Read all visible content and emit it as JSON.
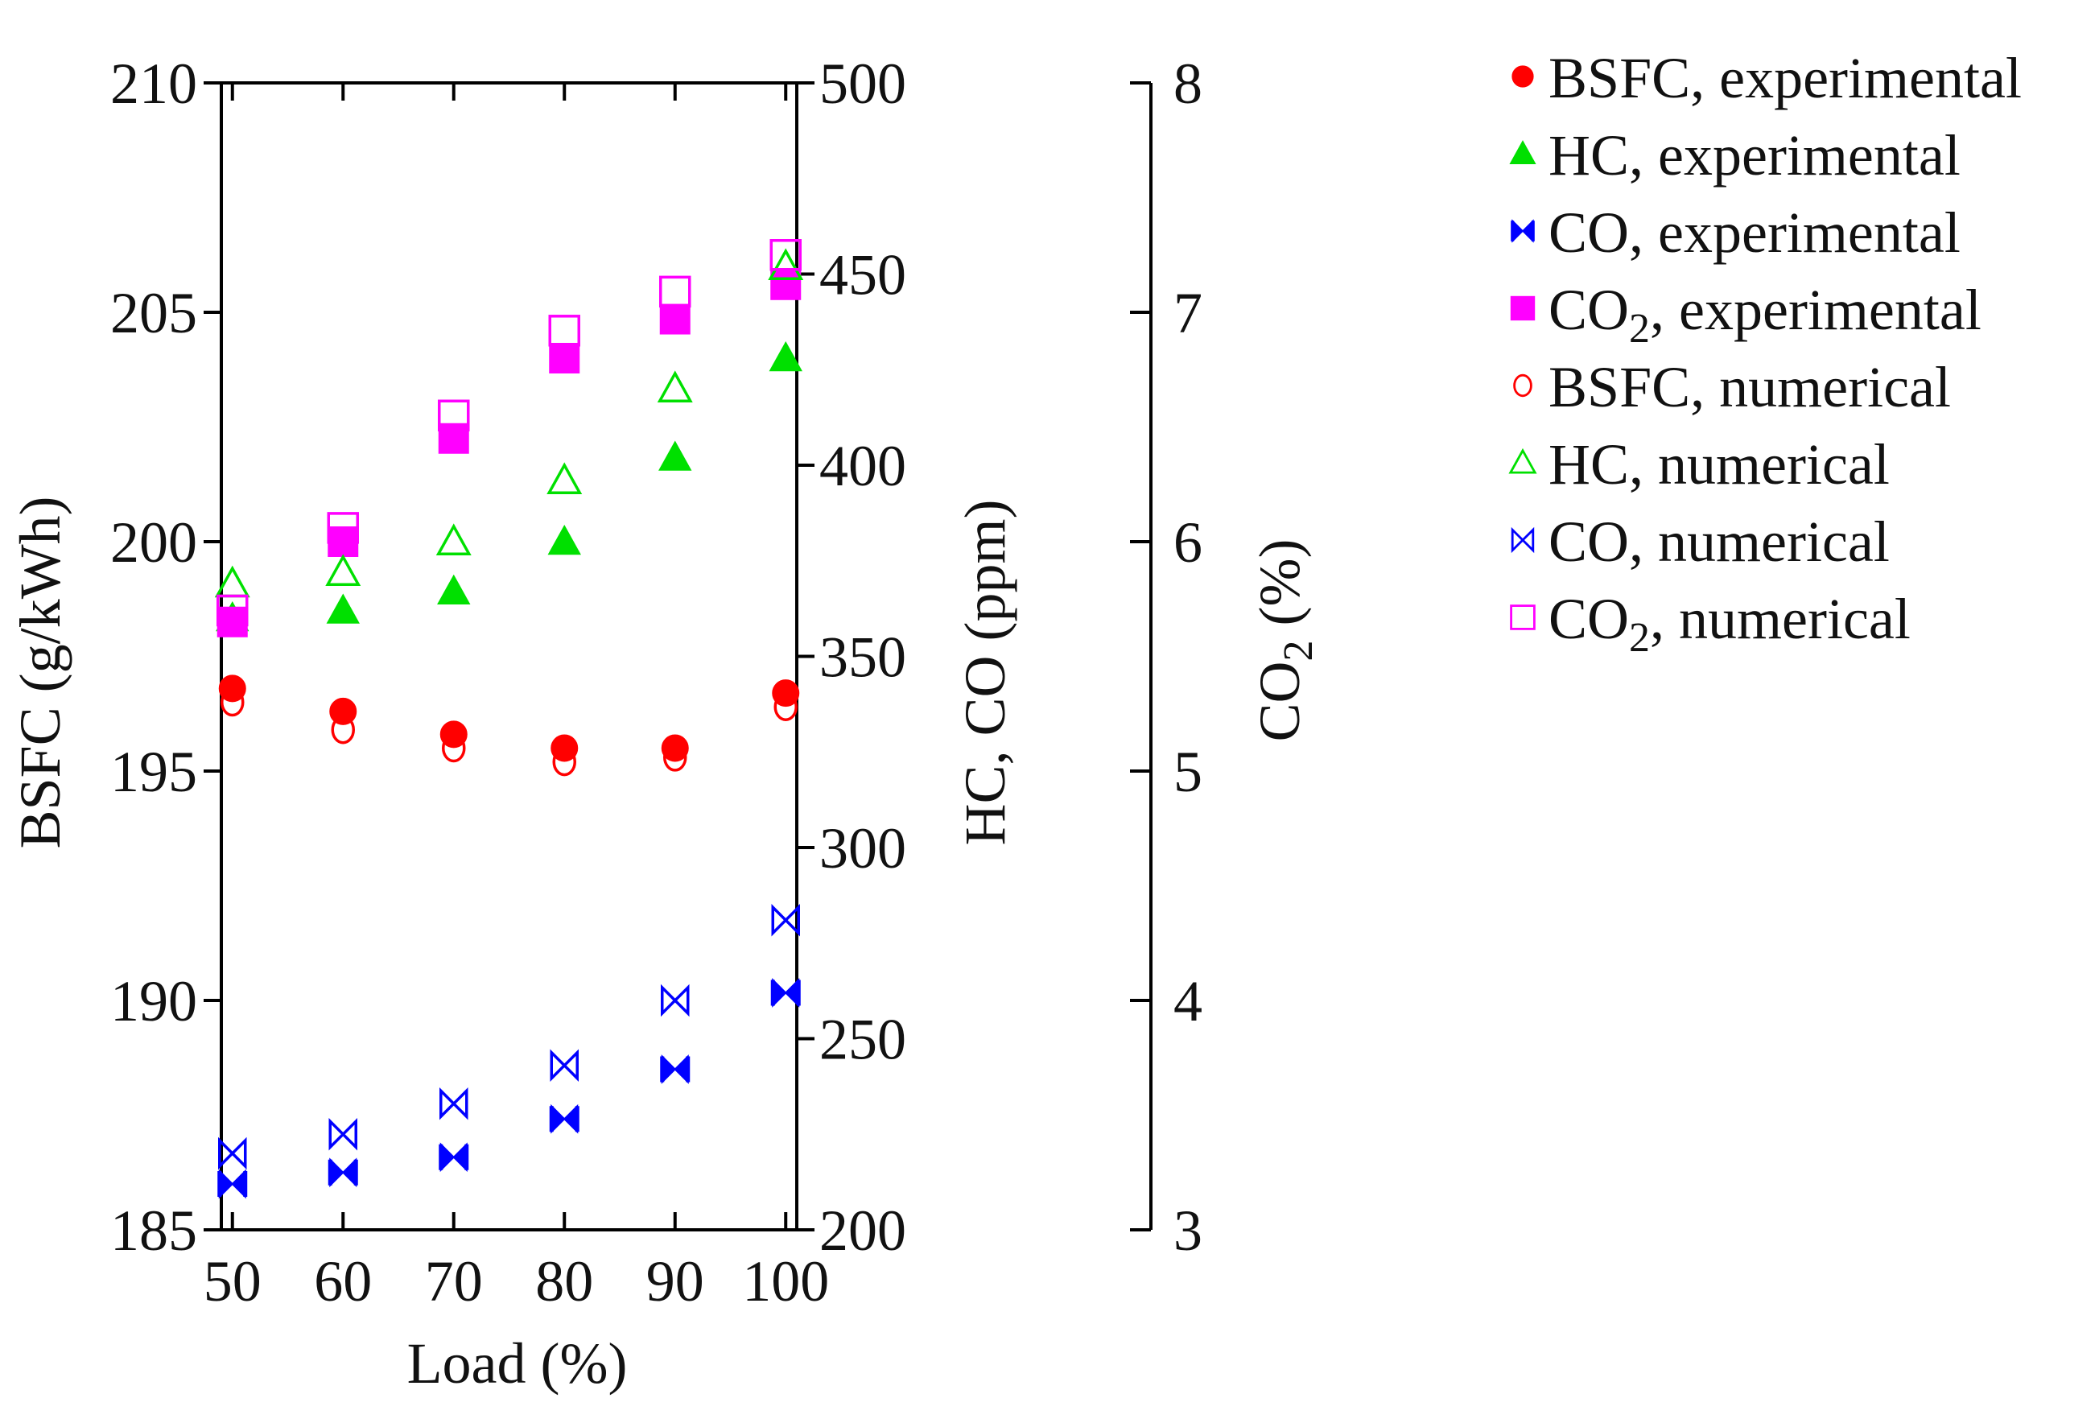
{
  "chart_data": {
    "type": "scatter",
    "x": [
      50,
      60,
      70,
      80,
      90,
      100
    ],
    "xlabel": "Load (%)",
    "xlim": [
      49,
      101
    ],
    "xticks": [
      50,
      60,
      70,
      80,
      90,
      100
    ],
    "axes": {
      "bsfc": {
        "label": "BSFC (g/kWh)",
        "lim": [
          185,
          210
        ],
        "ticks": [
          185,
          190,
          195,
          200,
          205,
          210
        ]
      },
      "hc_co": {
        "label": "HC, CO (ppm)",
        "lim": [
          200,
          500
        ],
        "ticks": [
          200,
          250,
          300,
          350,
          400,
          450,
          500
        ]
      },
      "co2": {
        "label_main": "CO",
        "label_sub": "2",
        "label_tail": " (%)",
        "lim": [
          3,
          8
        ],
        "ticks": [
          3,
          4,
          5,
          6,
          7,
          8
        ]
      }
    },
    "series": [
      {
        "id": "bsfc_exp",
        "name_main": "BSFC",
        "name_sub": "",
        "name_tail": ", experimental",
        "axis": "bsfc",
        "marker": "circle-filled",
        "color": "#ff0000",
        "values": [
          196.8,
          196.3,
          195.8,
          195.5,
          195.5,
          196.7
        ]
      },
      {
        "id": "hc_exp",
        "name_main": "HC",
        "name_sub": "",
        "name_tail": ", experimental",
        "axis": "hc_co",
        "marker": "triangle-filled",
        "color": "#00e000",
        "values": [
          360,
          362,
          367,
          380,
          402,
          428
        ]
      },
      {
        "id": "co_exp",
        "name_main": "CO",
        "name_sub": "",
        "name_tail": ", experimental",
        "axis": "hc_co",
        "marker": "bowtie-filled",
        "color": "#0000ff",
        "values": [
          212,
          215,
          219,
          229,
          242,
          262
        ]
      },
      {
        "id": "co2_exp",
        "name_main": "CO",
        "name_sub": "2",
        "name_tail": ", experimental",
        "axis": "co2",
        "marker": "square-filled",
        "color": "#ff00ff",
        "values": [
          5.65,
          6.0,
          6.45,
          6.8,
          6.97,
          7.12
        ]
      },
      {
        "id": "bsfc_num",
        "name_main": "BSFC",
        "name_sub": "",
        "name_tail": ", numerical",
        "axis": "bsfc",
        "marker": "circle-open",
        "color": "#ff0000",
        "values": [
          196.5,
          195.9,
          195.5,
          195.2,
          195.3,
          196.4
        ]
      },
      {
        "id": "hc_num",
        "name_main": "HC",
        "name_sub": "",
        "name_tail": ", numerical",
        "axis": "hc_co",
        "marker": "triangle-open",
        "color": "#00e000",
        "values": [
          369,
          372,
          380,
          396,
          420,
          452
        ]
      },
      {
        "id": "co_num",
        "name_main": "CO",
        "name_sub": "",
        "name_tail": ", numerical",
        "axis": "hc_co",
        "marker": "bowtie-open",
        "color": "#0000ff",
        "values": [
          220,
          225,
          233,
          243,
          260,
          281
        ]
      },
      {
        "id": "co2_num",
        "name_main": "CO",
        "name_sub": "2",
        "name_tail": ", numerical",
        "axis": "co2",
        "marker": "square-open",
        "color": "#ff00ff",
        "values": [
          5.7,
          6.06,
          6.55,
          6.92,
          7.09,
          7.25
        ]
      }
    ],
    "legend_position": "top-right"
  }
}
